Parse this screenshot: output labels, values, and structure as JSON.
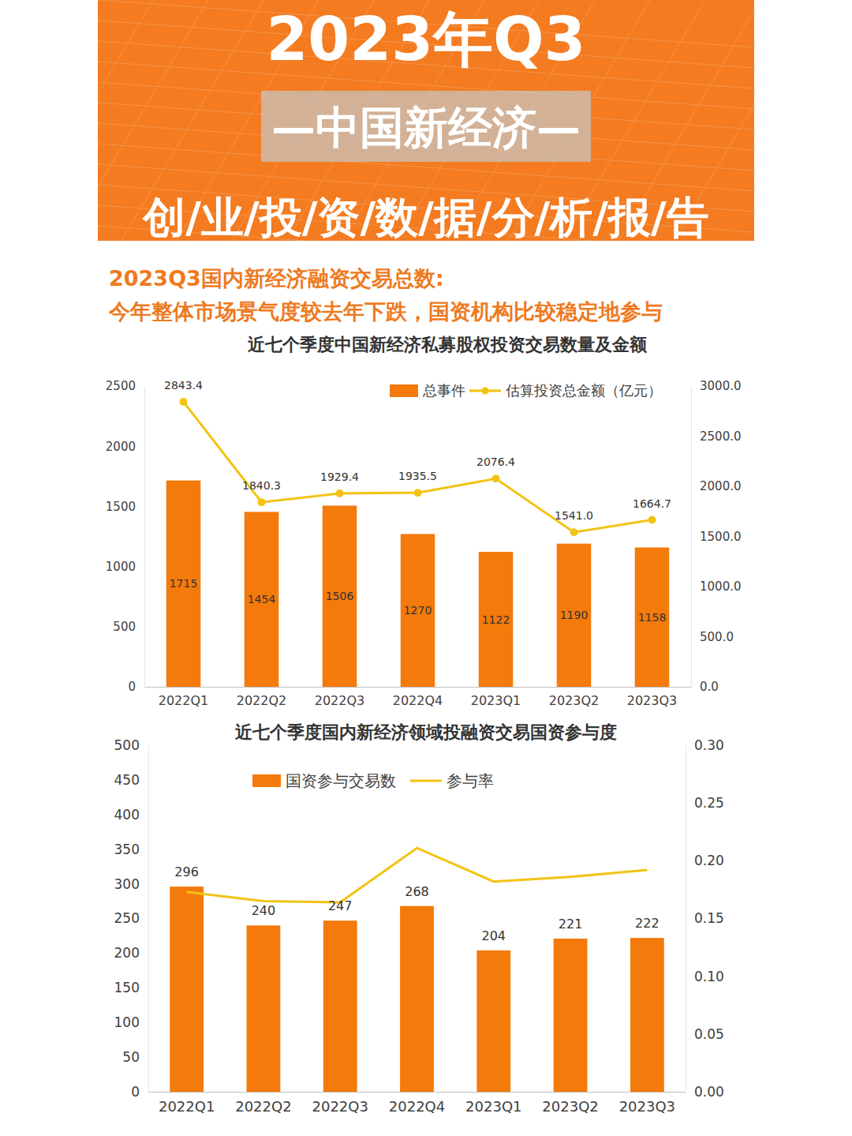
{
  "header": {
    "title": "2023年Q3",
    "subtitle": "—中国新经济—",
    "tagline": "创/业/投/资/数/据/分/析/报/告",
    "headline": [
      "2023Q3国内新经济融资交易总数:",
      "今年整体市场景气度较去年下跌，国资机构比较稳定地参与"
    ]
  },
  "chart_data": [
    {
      "type": "bar",
      "title": "近七个季度中国新经济私募股权投资交易数量及金额",
      "categories": [
        "2022Q1",
        "2022Q2",
        "2022Q3",
        "2022Q4",
        "2023Q1",
        "2023Q2",
        "2023Q3"
      ],
      "series": [
        {
          "name": "总事件",
          "type": "bar",
          "color": "#F47A0C",
          "data_labels": true,
          "values": [
            1715,
            1454,
            1506,
            1270,
            1122,
            1190,
            1158
          ]
        },
        {
          "name": "估算投资总金额（亿元）",
          "type": "line",
          "axis": "y2",
          "color": "#F2C314",
          "marker": "circle",
          "data_labels": true,
          "values": [
            2843.4,
            1840.3,
            1929.4,
            1935.5,
            2076.4,
            1541.0,
            1664.7
          ],
          "value_labels": [
            "2843.4",
            "1840.3",
            "1929.4",
            "1935.5",
            "2076.4",
            "1541.0",
            "1664.7"
          ]
        }
      ],
      "ylim": [
        0,
        2500
      ],
      "yticks": [
        0,
        500,
        1000,
        1500,
        2000,
        2500
      ],
      "y2lim": [
        0,
        3000
      ],
      "y2ticks": [
        {
          "value": 0,
          "label": "0.0"
        },
        {
          "value": 500,
          "label": "500.0"
        },
        {
          "value": 1000,
          "label": "1000.0"
        },
        {
          "value": 1500,
          "label": "1500.0"
        },
        {
          "value": 2000,
          "label": "2000.0"
        },
        {
          "value": 2500,
          "label": "2500.0"
        },
        {
          "value": 3000,
          "label": "3000.0"
        }
      ],
      "grid": false,
      "legend": "top-right",
      "data_labels": true
    },
    {
      "type": "bar",
      "title": "近七个季度国内新经济领域投融资交易国资参与度",
      "categories": [
        "2022Q1",
        "2022Q2",
        "2022Q3",
        "2022Q4",
        "2023Q1",
        "2023Q2",
        "2023Q3"
      ],
      "series": [
        {
          "name": "国资参与交易数",
          "type": "bar",
          "color": "#F47A0C",
          "data_labels": true,
          "values": [
            296,
            240,
            247,
            268,
            204,
            221,
            222
          ]
        },
        {
          "name": "参与率",
          "type": "line",
          "axis": "y2",
          "color": "#F2C314",
          "marker": "none",
          "data_labels": false,
          "values": [
            0.173,
            0.165,
            0.164,
            0.211,
            0.182,
            0.186,
            0.192
          ]
        }
      ],
      "ylim": [
        0,
        500
      ],
      "yticks": [
        0,
        50,
        100,
        150,
        200,
        250,
        300,
        350,
        400,
        450,
        500
      ],
      "y2lim": [
        0,
        0.3
      ],
      "y2ticks": [
        {
          "value": 0,
          "label": "0.00"
        },
        {
          "value": 0.05,
          "label": "0.05"
        },
        {
          "value": 0.1,
          "label": "0.10"
        },
        {
          "value": 0.15,
          "label": "0.15"
        },
        {
          "value": 0.2,
          "label": "0.20"
        },
        {
          "value": 0.25,
          "label": "0.25"
        },
        {
          "value": 0.3,
          "label": "0.30"
        }
      ],
      "grid": false,
      "legend": "top",
      "data_labels": true
    }
  ]
}
